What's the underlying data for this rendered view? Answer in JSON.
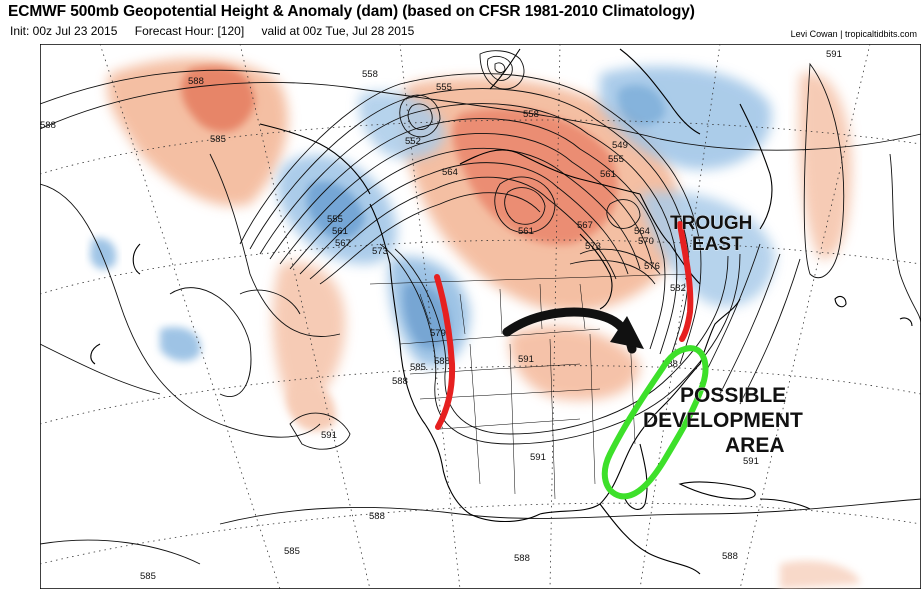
{
  "header": {
    "title": "ECMWF 500mb Geopotential Height & Anomaly (dam) (based on CFSR 1981-2010 Climatology)",
    "init": "Init: 00z Jul 23 2015",
    "forecast_hour": "Forecast Hour: [120]",
    "valid": "valid at 00z Tue, Jul 28 2015",
    "credit": "Levi Cowan | tropicaltidbits.com"
  },
  "annotations": {
    "trough_line1": "TROUGH",
    "trough_line2": "EAST",
    "dev_line1": "POSSIBLE",
    "dev_line2": "DEVELOPMENT",
    "dev_line3": "AREA"
  },
  "contour_labels": [
    "588",
    "585",
    "588",
    "558",
    "555",
    "552",
    "558",
    "549",
    "555",
    "561",
    "564",
    "555",
    "561",
    "567",
    "573",
    "561",
    "567",
    "573",
    "564",
    "570",
    "576",
    "582",
    "591",
    "579",
    "588",
    "588",
    "591",
    "591",
    "588",
    "585",
    "585",
    "588",
    "588",
    "591",
    "588",
    "591",
    "585"
  ],
  "colors": {
    "positive_anomaly": "#e8795a",
    "negative_anomaly": "#6fa6d6",
    "red_marker": "#e62020",
    "green_marker": "#3de02a",
    "arrow": "#111111"
  }
}
